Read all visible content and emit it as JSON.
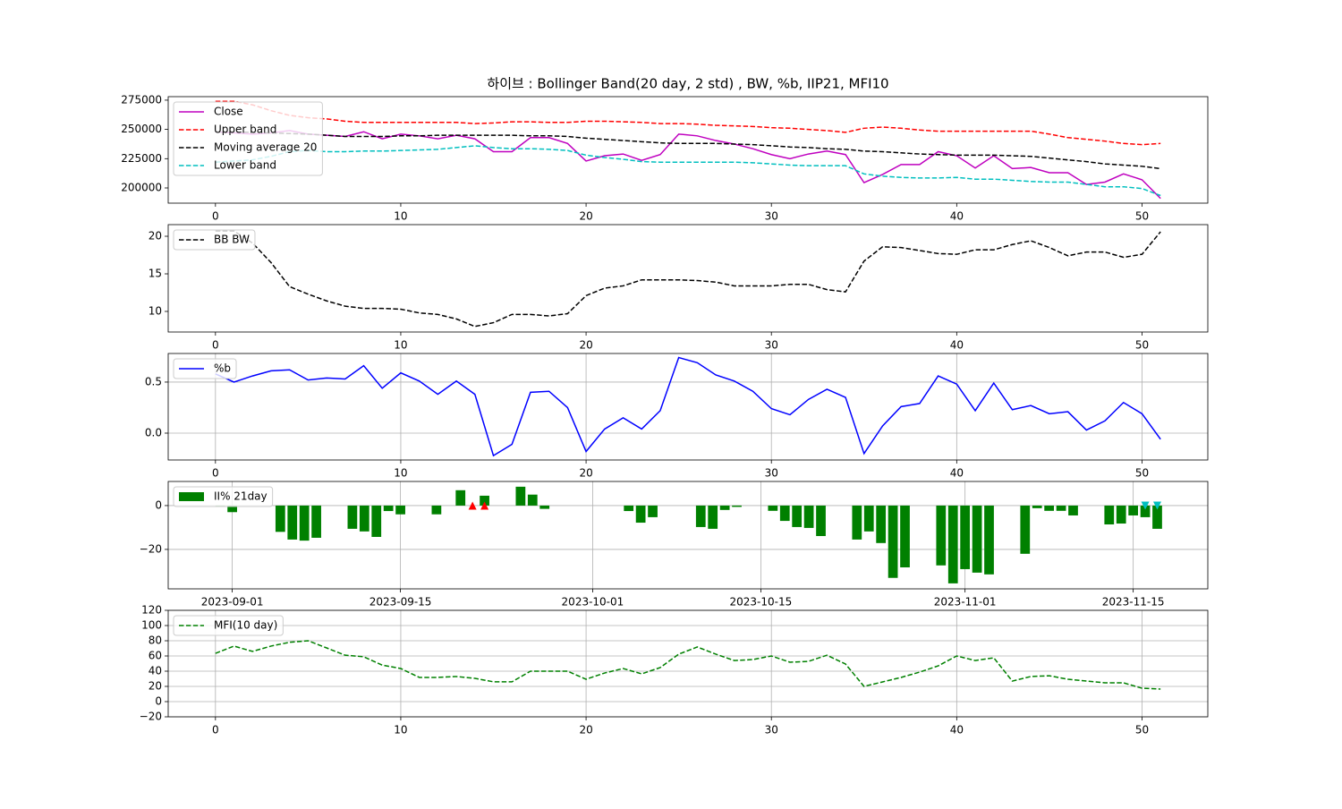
{
  "chart_data": [
    {
      "type": "line",
      "title": "하이브 : Bollinger Band(20 day, 2 std) , BW, %b, IIP21, MFI10",
      "x": [
        0,
        1,
        2,
        3,
        4,
        5,
        6,
        7,
        8,
        9,
        10,
        11,
        12,
        13,
        14,
        15,
        16,
        17,
        18,
        19,
        20,
        21,
        22,
        23,
        24,
        25,
        26,
        27,
        28,
        29,
        30,
        31,
        32,
        33,
        34,
        35,
        36,
        37,
        38,
        39,
        40,
        41,
        42,
        43,
        44,
        45,
        46,
        47,
        48,
        49,
        50,
        51
      ],
      "xlim": [
        -2.55,
        53.55
      ],
      "xticks": [
        0,
        10,
        20,
        30,
        40,
        50
      ],
      "ylim": [
        187000,
        278000
      ],
      "yticks": [
        200000,
        225000,
        250000,
        275000
      ],
      "grid": false,
      "legend": "upper left",
      "series": [
        {
          "name": "Close",
          "color": "#bf00bf",
          "linestyle": "-",
          "values": [
            248000,
            247000,
            246000,
            247000,
            249000,
            246000,
            245000,
            244000,
            248000,
            242000,
            246000,
            244500,
            242000,
            245000,
            242000,
            231000,
            231000,
            243000,
            243000,
            238000,
            223000,
            227500,
            229000,
            223500,
            228500,
            246000,
            244500,
            240500,
            237500,
            233500,
            228500,
            225000,
            229000,
            231500,
            228500,
            204500,
            211500,
            220000,
            220000,
            231000,
            227500,
            217000,
            227500,
            216500,
            217500,
            213000,
            213000,
            203000,
            205000,
            212000,
            207000,
            191000
          ]
        },
        {
          "name": "Upper band",
          "color": "#ff0000",
          "linestyle": "--",
          "values": [
            274000,
            274000,
            271000,
            266000,
            262000,
            260000,
            259000,
            257000,
            256000,
            256000,
            256000,
            256000,
            256000,
            256000,
            255000,
            255500,
            256500,
            256500,
            256000,
            256000,
            257000,
            257000,
            256500,
            256000,
            255000,
            255000,
            254500,
            253500,
            253000,
            252500,
            251500,
            251000,
            250000,
            249000,
            247500,
            251000,
            252000,
            251000,
            249500,
            248500,
            248500,
            248500,
            248500,
            248500,
            248500,
            246000,
            243000,
            241500,
            240000,
            238000,
            237000,
            238000
          ]
        },
        {
          "name": "Moving average 20",
          "color": "#000000",
          "linestyle": "--",
          "values": [
            248000,
            248000,
            247500,
            247000,
            246500,
            246000,
            245000,
            244000,
            244000,
            244000,
            244500,
            244500,
            245000,
            245000,
            245000,
            245000,
            245000,
            244500,
            244500,
            244000,
            242500,
            241500,
            240500,
            239500,
            238500,
            238000,
            238000,
            238000,
            237500,
            237000,
            236000,
            235000,
            234500,
            233500,
            233000,
            231500,
            231000,
            230000,
            229000,
            228500,
            228000,
            228000,
            228000,
            227500,
            227000,
            225500,
            224000,
            222500,
            220500,
            219500,
            218500,
            216500
          ]
        },
        {
          "name": "Lower band",
          "color": "#00bfbf",
          "linestyle": "--",
          "values": [
            222000,
            223000,
            224000,
            227000,
            231000,
            232000,
            231000,
            231000,
            231500,
            231500,
            232000,
            232500,
            233000,
            234500,
            236000,
            234500,
            233500,
            233500,
            233000,
            232000,
            228000,
            226000,
            224500,
            222500,
            222000,
            222000,
            222000,
            222000,
            222000,
            221500,
            220500,
            219500,
            219000,
            219000,
            219000,
            212000,
            210000,
            209000,
            208500,
            208500,
            209000,
            207500,
            207500,
            206500,
            205500,
            205000,
            205000,
            203000,
            201000,
            201000,
            199500,
            193500
          ]
        }
      ]
    },
    {
      "type": "line",
      "x": [
        0,
        1,
        2,
        3,
        4,
        5,
        6,
        7,
        8,
        9,
        10,
        11,
        12,
        13,
        14,
        15,
        16,
        17,
        18,
        19,
        20,
        21,
        22,
        23,
        24,
        25,
        26,
        27,
        28,
        29,
        30,
        31,
        32,
        33,
        34,
        35,
        36,
        37,
        38,
        39,
        40,
        41,
        42,
        43,
        44,
        45,
        46,
        47,
        48,
        49,
        50,
        51
      ],
      "xlim": [
        -2.55,
        53.55
      ],
      "xticks": [
        0,
        10,
        20,
        30,
        40,
        50
      ],
      "ylim": [
        7.26,
        21.55
      ],
      "yticks": [
        10,
        15,
        20
      ],
      "grid": false,
      "legend": "upper left",
      "series": [
        {
          "name": "BB BW",
          "color": "#000000",
          "linestyle": "--",
          "values": [
            20.7,
            20.7,
            19.1,
            16.5,
            13.3,
            12.3,
            11.4,
            10.7,
            10.4,
            10.4,
            10.3,
            9.8,
            9.6,
            9.0,
            8.0,
            8.5,
            9.6,
            9.6,
            9.4,
            9.7,
            12.1,
            13.1,
            13.4,
            14.2,
            14.2,
            14.2,
            14.1,
            13.9,
            13.4,
            13.4,
            13.4,
            13.6,
            13.6,
            12.9,
            12.6,
            16.7,
            18.6,
            18.5,
            18.1,
            17.7,
            17.6,
            18.2,
            18.2,
            18.9,
            19.4,
            18.5,
            17.4,
            17.9,
            17.9,
            17.2,
            17.6,
            20.6
          ]
        }
      ]
    },
    {
      "type": "line",
      "x": [
        0,
        1,
        2,
        3,
        4,
        5,
        6,
        7,
        8,
        9,
        10,
        11,
        12,
        13,
        14,
        15,
        16,
        17,
        18,
        19,
        20,
        21,
        22,
        23,
        24,
        25,
        26,
        27,
        28,
        29,
        30,
        31,
        32,
        33,
        34,
        35,
        36,
        37,
        38,
        39,
        40,
        41,
        42,
        43,
        44,
        45,
        46,
        47,
        48,
        49,
        50,
        51
      ],
      "xlim": [
        -2.55,
        53.55
      ],
      "xticks": [
        0,
        10,
        20,
        30,
        40,
        50
      ],
      "ylim": [
        -0.263,
        0.78
      ],
      "yticks": [
        {
          "value": 0,
          "label": "0.0"
        },
        0.5
      ],
      "grid": true,
      "legend": "upper left",
      "series": [
        {
          "name": "%b",
          "color": "#0000ff",
          "linestyle": "-",
          "values": [
            0.58,
            0.5,
            0.56,
            0.61,
            0.62,
            0.52,
            0.54,
            0.53,
            0.66,
            0.44,
            0.59,
            0.51,
            0.38,
            0.51,
            0.38,
            -0.22,
            -0.11,
            0.4,
            0.41,
            0.25,
            -0.18,
            0.04,
            0.15,
            0.04,
            0.22,
            0.74,
            0.69,
            0.57,
            0.51,
            0.41,
            0.24,
            0.18,
            0.33,
            0.43,
            0.35,
            -0.2,
            0.07,
            0.26,
            0.29,
            0.56,
            0.48,
            0.22,
            0.49,
            0.23,
            0.27,
            0.19,
            0.21,
            0.03,
            0.12,
            0.3,
            0.19,
            -0.06
          ]
        }
      ]
    },
    {
      "type": "bar",
      "x": [
        "2023-08-31",
        "2023-09-01",
        "2023-09-04",
        "2023-09-05",
        "2023-09-06",
        "2023-09-07",
        "2023-09-08",
        "2023-09-11",
        "2023-09-12",
        "2023-09-13",
        "2023-09-14",
        "2023-09-15",
        "2023-09-18",
        "2023-09-19",
        "2023-09-20",
        "2023-09-21",
        "2023-09-22",
        "2023-09-25",
        "2023-09-26",
        "2023-09-27",
        "2023-10-04",
        "2023-10-05",
        "2023-10-06",
        "2023-10-10",
        "2023-10-11",
        "2023-10-12",
        "2023-10-13",
        "2023-10-16",
        "2023-10-17",
        "2023-10-18",
        "2023-10-19",
        "2023-10-20",
        "2023-10-23",
        "2023-10-24",
        "2023-10-25",
        "2023-10-26",
        "2023-10-27",
        "2023-10-30",
        "2023-10-31",
        "2023-11-01",
        "2023-11-02",
        "2023-11-03",
        "2023-11-06",
        "2023-11-07",
        "2023-11-08",
        "2023-11-09",
        "2023-11-10",
        "2023-11-13",
        "2023-11-14",
        "2023-11-15",
        "2023-11-16",
        "2023-11-17"
      ],
      "xlim": [
        "2023-08-26T16:00",
        "2023-11-21T05:00"
      ],
      "xticks": [
        "2023-09-01",
        "2023-09-15",
        "2023-10-01",
        "2023-10-15",
        "2023-11-01",
        "2023-11-15"
      ],
      "ylim": [
        -38,
        11
      ],
      "yticks": [
        {
          "value": -20,
          "label": "−20"
        },
        0
      ],
      "grid": true,
      "legend": "upper left",
      "series": [
        {
          "name": "II% 21day",
          "color": "#008000",
          "values": [
            -0.5,
            -3,
            0,
            -12,
            -15.5,
            -16,
            -14.7,
            -10.6,
            -11.8,
            -14.3,
            -2.5,
            -4,
            -4,
            0,
            7,
            0,
            4.5,
            8.6,
            5,
            -1.5,
            -2.5,
            -7.8,
            -5.3,
            -9.8,
            -10.6,
            -2,
            -0.6,
            -2.4,
            -7,
            -9.8,
            -10.2,
            -13.9,
            -15.5,
            -11.8,
            -17.1,
            -33,
            -28.2,
            -27.3,
            -35.5,
            -29,
            -30.6,
            -31.4,
            -22,
            -1.2,
            -2.4,
            -2.4,
            -4.5,
            -8.6,
            -8.2,
            -4.5,
            -5.3,
            -10.6
          ]
        }
      ],
      "markers": [
        {
          "marker": "^",
          "color": "#ff0000",
          "x": [
            "2023-09-21",
            "2023-09-22"
          ],
          "values": [
            0,
            0
          ]
        },
        {
          "marker": "v",
          "color": "#00bfbf",
          "x": [
            "2023-11-16",
            "2023-11-17"
          ],
          "values": [
            0,
            0
          ]
        }
      ]
    },
    {
      "type": "line",
      "x": [
        0,
        1,
        2,
        3,
        4,
        5,
        6,
        7,
        8,
        9,
        10,
        11,
        12,
        13,
        14,
        15,
        16,
        17,
        18,
        19,
        20,
        21,
        22,
        23,
        24,
        25,
        26,
        27,
        28,
        29,
        30,
        31,
        32,
        33,
        34,
        35,
        36,
        37,
        38,
        39,
        40,
        41,
        42,
        43,
        44,
        45,
        46,
        47,
        48,
        49,
        50,
        51
      ],
      "xlim": [
        -2.55,
        53.55
      ],
      "xticks": [
        0,
        10,
        20,
        30,
        40,
        50
      ],
      "ylim": [
        -20,
        120
      ],
      "yticks": [
        {
          "value": -20,
          "label": "−20"
        },
        0,
        20,
        40,
        60,
        80,
        100,
        120
      ],
      "grid": true,
      "legend": "upper left",
      "series": [
        {
          "name": "MFI(10 day)",
          "color": "#008000",
          "linestyle": "--",
          "values": [
            63.5,
            73,
            66,
            73,
            78,
            80,
            70.6,
            61,
            59,
            48,
            43.5,
            31.8,
            31.8,
            33,
            30.6,
            26,
            26,
            40,
            40,
            40,
            29.4,
            37.6,
            43.5,
            36.5,
            44.7,
            62.4,
            71.8,
            62.4,
            54,
            55.3,
            60,
            51.8,
            52.9,
            61,
            49.4,
            20,
            25.9,
            31.8,
            38.8,
            47,
            60,
            54,
            57.6,
            27,
            33,
            34,
            29.4,
            27,
            24.7,
            24.7,
            17.6,
            16.5
          ]
        }
      ]
    }
  ]
}
